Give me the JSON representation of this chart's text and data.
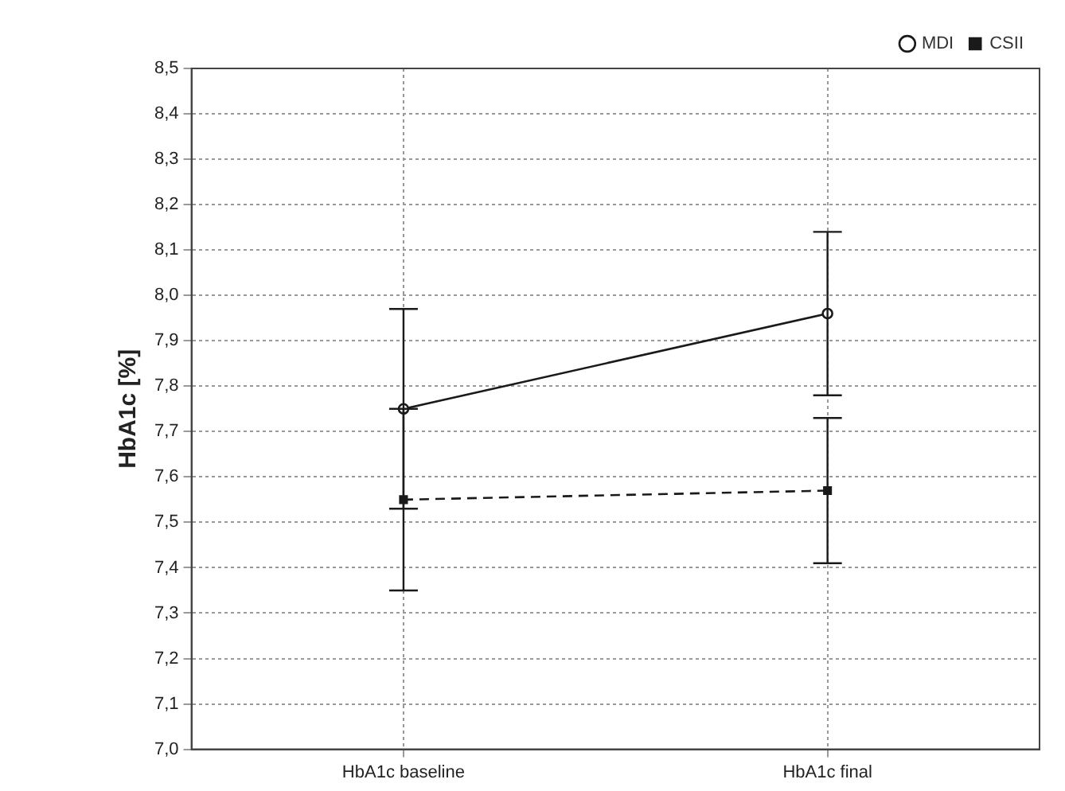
{
  "chart_data": {
    "type": "line",
    "ylabel": "HbA1c [%]",
    "categories": [
      "HbA1c baseline",
      "HbA1c final"
    ],
    "series": [
      {
        "name": "MDI",
        "color": "#1a1a1a",
        "values": [
          7.75,
          7.96
        ],
        "errors": [
          [
            7.53,
            7.97
          ],
          [
            7.78,
            8.14
          ]
        ],
        "marker": "circle",
        "line_style": "solid"
      },
      {
        "name": "CSII",
        "color": "#1a1a1a",
        "values": [
          7.55,
          7.57
        ],
        "errors": [
          [
            7.35,
            7.75
          ],
          [
            7.41,
            7.73
          ]
        ],
        "marker": "square",
        "line_style": "dashed"
      }
    ],
    "ylim": [
      7.0,
      8.5
    ],
    "yticks": [
      {
        "value": 7.0,
        "label": "7,0"
      },
      {
        "value": 7.1,
        "label": "7,1"
      },
      {
        "value": 7.2,
        "label": "7,2"
      },
      {
        "value": 7.3,
        "label": "7,3"
      },
      {
        "value": 7.4,
        "label": "7,4"
      },
      {
        "value": 7.5,
        "label": "7,5"
      },
      {
        "value": 7.6,
        "label": "7,6"
      },
      {
        "value": 7.7,
        "label": "7,7"
      },
      {
        "value": 7.8,
        "label": "7,8"
      },
      {
        "value": 7.9,
        "label": "7,9"
      },
      {
        "value": 8.0,
        "label": "8,0"
      },
      {
        "value": 8.1,
        "label": "8,1"
      },
      {
        "value": 8.2,
        "label": "8,2"
      },
      {
        "value": 8.3,
        "label": "8,3"
      },
      {
        "value": 8.4,
        "label": "8,4"
      },
      {
        "value": 8.5,
        "label": "8,5"
      }
    ],
    "grid": true,
    "legend": "top right"
  }
}
